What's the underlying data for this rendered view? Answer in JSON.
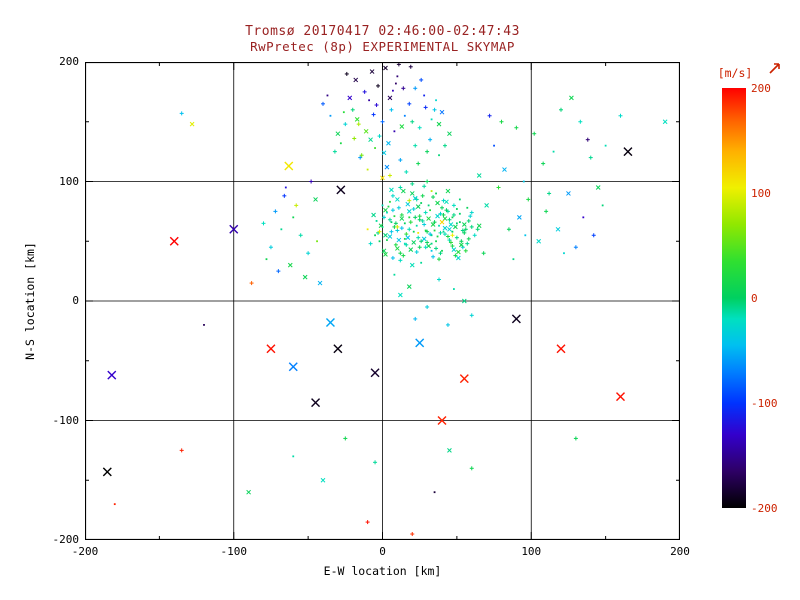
{
  "figure": {
    "title_line1": "Tromsø 20170417 02:46:00-02:47:43",
    "title_line2": "RwPretec (8p) EXPERIMENTAL SKYMAP",
    "title_color": "#992222",
    "background": "#ffffff",
    "axis_color": "#000000"
  },
  "chart_data": {
    "type": "scatter",
    "title": "Tromsø 20170417 02:46:00-02:47:43",
    "subtitle": "RwPretec (8p) EXPERIMENTAL SKYMAP",
    "xlabel": "E-W location [km]",
    "ylabel": "N-S location [km]",
    "xlim": [
      -200,
      200
    ],
    "ylim": [
      -200,
      200
    ],
    "xticks": [
      -200,
      -100,
      0,
      100,
      200
    ],
    "yticks": [
      -200,
      -100,
      0,
      100,
      200
    ],
    "grid": true,
    "grid_positions": [
      -100,
      0,
      100
    ],
    "legend_position": "right-colorbar",
    "colorbar": {
      "label": "[m/s]",
      "label_color": "#cc2200",
      "ticks": [
        200,
        100,
        0,
        -100,
        -200
      ],
      "range": [
        -200,
        200
      ],
      "stops": [
        [
          -200,
          "#000000"
        ],
        [
          -165,
          "#2e0066"
        ],
        [
          -130,
          "#3300cc"
        ],
        [
          -100,
          "#0033ff"
        ],
        [
          -70,
          "#0080ff"
        ],
        [
          -45,
          "#00c0f0"
        ],
        [
          -20,
          "#00e0c0"
        ],
        [
          0,
          "#00d060"
        ],
        [
          35,
          "#30e030"
        ],
        [
          70,
          "#90e800"
        ],
        [
          105,
          "#f0f000"
        ],
        [
          140,
          "#ffb000"
        ],
        [
          170,
          "#ff6000"
        ],
        [
          200,
          "#ff0000"
        ]
      ]
    },
    "points": [
      [
        2,
        55,
        -5
      ],
      [
        8,
        62,
        10
      ],
      [
        15,
        48,
        -20
      ],
      [
        22,
        70,
        0
      ],
      [
        28,
        52,
        -35
      ],
      [
        35,
        66,
        5
      ],
      [
        41,
        58,
        -10
      ],
      [
        12,
        40,
        15
      ],
      [
        18,
        75,
        -25
      ],
      [
        25,
        45,
        8
      ],
      [
        31,
        80,
        -5
      ],
      [
        38,
        35,
        20
      ],
      [
        45,
        60,
        -30
      ],
      [
        5,
        68,
        -12
      ],
      [
        -2,
        50,
        5
      ],
      [
        48,
        72,
        -8
      ],
      [
        20,
        30,
        -18
      ],
      [
        27,
        88,
        12
      ],
      [
        33,
        42,
        -40
      ],
      [
        40,
        78,
        3
      ],
      [
        10,
        85,
        -22
      ],
      [
        16,
        56,
        30
      ],
      [
        23,
        63,
        -15
      ],
      [
        30,
        49,
        6
      ],
      [
        37,
        71,
        -28
      ],
      [
        44,
        54,
        18
      ],
      [
        50,
        65,
        -4
      ],
      [
        7,
        36,
        -45
      ],
      [
        14,
        92,
        9
      ],
      [
        21,
        77,
        -33
      ],
      [
        29,
        59,
        22
      ],
      [
        36,
        44,
        -7
      ],
      [
        43,
        83,
        -19
      ],
      [
        49,
        38,
        14
      ],
      [
        3,
        74,
        -26
      ],
      [
        55,
        57,
        2
      ],
      [
        11,
        51,
        -38
      ],
      [
        19,
        66,
        25
      ],
      [
        26,
        32,
        -11
      ],
      [
        34,
        87,
        7
      ],
      [
        42,
        61,
        -31
      ],
      [
        47,
        46,
        16
      ],
      [
        52,
        73,
        -2
      ],
      [
        6,
        58,
        -42
      ],
      [
        13,
        69,
        11
      ],
      [
        24,
        53,
        -16
      ],
      [
        32,
        76,
        28
      ],
      [
        39,
        40,
        -6
      ],
      [
        46,
        64,
        -24
      ],
      [
        53,
        50,
        4
      ],
      [
        0,
        62,
        -14
      ],
      [
        9,
        47,
        21
      ],
      [
        17,
        81,
        -36
      ],
      [
        25,
        68,
        1
      ],
      [
        33,
        55,
        -9
      ],
      [
        41,
        72,
        13
      ],
      [
        48,
        43,
        -27
      ],
      [
        56,
        60,
        -1
      ],
      [
        4,
        79,
        17
      ],
      [
        12,
        34,
        -21
      ],
      [
        20,
        90,
        5
      ],
      [
        28,
        64,
        -34
      ],
      [
        36,
        50,
        10
      ],
      [
        44,
        75,
        -13
      ],
      [
        51,
        41,
        24
      ],
      [
        58,
        67,
        -3
      ],
      [
        -5,
        55,
        8
      ],
      [
        1,
        70,
        -29
      ],
      [
        10,
        44,
        19
      ],
      [
        18,
        60,
        -17
      ],
      [
        26,
        82,
        3
      ],
      [
        34,
        37,
        -41
      ],
      [
        42,
        69,
        15
      ],
      [
        50,
        53,
        -8
      ],
      [
        57,
        78,
        6
      ],
      [
        -8,
        48,
        -23
      ],
      [
        -1,
        63,
        12
      ],
      [
        7,
        76,
        -37
      ],
      [
        15,
        52,
        26
      ],
      [
        23,
        85,
        -12
      ],
      [
        31,
        46,
        9
      ],
      [
        39,
        73,
        -25
      ],
      [
        47,
        58,
        0
      ],
      [
        54,
        45,
        -32
      ],
      [
        2,
        39,
        18
      ],
      [
        60,
        62,
        -6
      ],
      [
        8,
        71,
        23
      ],
      [
        16,
        47,
        -15
      ],
      [
        24,
        79,
        4
      ],
      [
        32,
        56,
        -39
      ],
      [
        40,
        42,
        11
      ],
      [
        48,
        80,
        -20
      ],
      [
        55,
        64,
        7
      ],
      [
        -3,
        57,
        -10
      ],
      [
        5,
        83,
        27
      ],
      [
        13,
        61,
        -44
      ],
      [
        21,
        49,
        2
      ],
      [
        29,
        74,
        -18
      ],
      [
        37,
        54,
        20
      ],
      [
        45,
        68,
        -5
      ],
      [
        53,
        47,
        13
      ],
      [
        59,
        71,
        -30
      ],
      [
        6,
        66,
        -2
      ],
      [
        14,
        38,
        16
      ],
      [
        22,
        86,
        -28
      ],
      [
        30,
        58,
        5
      ],
      [
        38,
        63,
        -16
      ],
      [
        46,
        49,
        29
      ],
      [
        -6,
        72,
        -9
      ],
      [
        62,
        55,
        -22
      ],
      [
        3,
        51,
        14
      ],
      [
        11,
        78,
        -35
      ],
      [
        19,
        43,
        7
      ],
      [
        27,
        67,
        -13
      ],
      [
        35,
        59,
        21
      ],
      [
        43,
        76,
        -1
      ],
      [
        51,
        36,
        -26
      ],
      [
        58,
        52,
        10
      ],
      [
        0,
        80,
        -19
      ],
      [
        9,
        65,
        3
      ],
      [
        17,
        53,
        -43
      ],
      [
        25,
        71,
        17
      ],
      [
        33,
        48,
        -7
      ],
      [
        41,
        84,
        -24
      ],
      [
        49,
        62,
        8
      ],
      [
        56,
        42,
        25
      ],
      [
        -4,
        67,
        -11
      ],
      [
        64,
        60,
        -3
      ],
      [
        5,
        54,
        -33
      ],
      [
        13,
        72,
        19
      ],
      [
        21,
        58,
        6
      ],
      [
        29,
        45,
        -21
      ],
      [
        37,
        82,
        12
      ],
      [
        45,
        51,
        -15
      ],
      [
        52,
        66,
        2
      ],
      [
        60,
        74,
        -27
      ],
      [
        1,
        42,
        9
      ],
      [
        10,
        59,
        -36
      ],
      [
        18,
        70,
        24
      ],
      [
        26,
        50,
        -4
      ],
      [
        34,
        64,
        15
      ],
      [
        42,
        56,
        -18
      ],
      [
        50,
        77,
        5
      ],
      [
        57,
        48,
        -10
      ],
      [
        65,
        63,
        11
      ],
      [
        7,
        88,
        -25
      ],
      [
        15,
        65,
        1
      ],
      [
        23,
        41,
        -32
      ],
      [
        31,
        69,
        22
      ],
      [
        39,
        57,
        -14
      ],
      [
        47,
        70,
        8
      ],
      [
        54,
        59,
        -6
      ],
      [
        2,
        76,
        16
      ],
      [
        28,
        96,
        -12
      ],
      [
        36,
        90,
        4
      ],
      [
        20,
        98,
        -8
      ],
      [
        44,
        92,
        10
      ],
      [
        12,
        95,
        -15
      ],
      [
        52,
        85,
        -3
      ],
      [
        30,
        100,
        7
      ],
      [
        6,
        93,
        -20
      ],
      [
        10,
        62,
        95
      ],
      [
        24,
        57,
        110
      ],
      [
        18,
        84,
        88
      ],
      [
        40,
        66,
        120
      ],
      [
        -2,
        58,
        100
      ],
      [
        33,
        92,
        85
      ],
      [
        47,
        55,
        105
      ],
      [
        0,
        103,
        115
      ],
      [
        5,
        105,
        92
      ],
      [
        -10,
        60,
        108
      ],
      [
        -15,
        120,
        -60
      ],
      [
        -8,
        135,
        -10
      ],
      [
        0,
        150,
        -80
      ],
      [
        8,
        142,
        -140
      ],
      [
        -20,
        160,
        -5
      ],
      [
        5,
        170,
        -170
      ],
      [
        -3,
        180,
        -190
      ],
      [
        10,
        188,
        -160
      ],
      [
        -12,
        175,
        -120
      ],
      [
        2,
        195,
        -185
      ],
      [
        -25,
        148,
        -30
      ],
      [
        15,
        155,
        -70
      ],
      [
        22,
        130,
        -15
      ],
      [
        -30,
        140,
        8
      ],
      [
        18,
        165,
        -95
      ],
      [
        -5,
        128,
        40
      ],
      [
        12,
        118,
        -55
      ],
      [
        -18,
        185,
        -175
      ],
      [
        6,
        160,
        -45
      ],
      [
        -10,
        110,
        90
      ],
      [
        25,
        145,
        -20
      ],
      [
        -22,
        170,
        -130
      ],
      [
        30,
        125,
        5
      ],
      [
        -35,
        155,
        -60
      ],
      [
        14,
        178,
        -150
      ],
      [
        -7,
        192,
        -180
      ],
      [
        20,
        150,
        -8
      ],
      [
        -28,
        132,
        18
      ],
      [
        35,
        160,
        -40
      ],
      [
        3,
        112,
        -65
      ],
      [
        -14,
        122,
        60
      ],
      [
        28,
        172,
        -110
      ],
      [
        -2,
        138,
        -25
      ],
      [
        38,
        148,
        12
      ],
      [
        -40,
        165,
        -85
      ],
      [
        9,
        182,
        -165
      ],
      [
        16,
        108,
        -18
      ],
      [
        -17,
        152,
        35
      ],
      [
        32,
        135,
        -50
      ],
      [
        -9,
        168,
        -145
      ],
      [
        24,
        115,
        10
      ],
      [
        40,
        158,
        -75
      ],
      [
        -32,
        125,
        -12
      ],
      [
        7,
        176,
        -135
      ],
      [
        -24,
        190,
        -190
      ],
      [
        13,
        146,
        22
      ],
      [
        -6,
        156,
        -100
      ],
      [
        36,
        168,
        -28
      ],
      [
        19,
        196,
        -178
      ],
      [
        -11,
        142,
        50
      ],
      [
        42,
        130,
        -8
      ],
      [
        -37,
        172,
        -155
      ],
      [
        26,
        185,
        -90
      ],
      [
        1,
        124,
        -38
      ],
      [
        -19,
        136,
        70
      ],
      [
        33,
        152,
        -18
      ],
      [
        -4,
        164,
        -125
      ],
      [
        45,
        140,
        5
      ],
      [
        11,
        198,
        -182
      ],
      [
        -26,
        158,
        28
      ],
      [
        22,
        178,
        -60
      ],
      [
        4,
        132,
        -48
      ],
      [
        -16,
        148,
        80
      ],
      [
        38,
        122,
        -5
      ],
      [
        29,
        162,
        -105
      ],
      [
        70,
        80,
        -15
      ],
      [
        85,
        60,
        5
      ],
      [
        95,
        100,
        -40
      ],
      [
        110,
        75,
        10
      ],
      [
        125,
        90,
        -60
      ],
      [
        140,
        120,
        -10
      ],
      [
        75,
        130,
        -90
      ],
      [
        90,
        145,
        15
      ],
      [
        105,
        50,
        -25
      ],
      [
        120,
        160,
        -5
      ],
      [
        135,
        70,
        -130
      ],
      [
        68,
        40,
        8
      ],
      [
        82,
        110,
        -50
      ],
      [
        98,
        85,
        20
      ],
      [
        115,
        125,
        -15
      ],
      [
        130,
        45,
        -70
      ],
      [
        145,
        95,
        5
      ],
      [
        72,
        155,
        -110
      ],
      [
        88,
        35,
        -8
      ],
      [
        102,
        140,
        12
      ],
      [
        118,
        60,
        -35
      ],
      [
        133,
        150,
        -20
      ],
      [
        148,
        80,
        -5
      ],
      [
        78,
        95,
        30
      ],
      [
        92,
        70,
        -55
      ],
      [
        108,
        115,
        8
      ],
      [
        122,
        40,
        -28
      ],
      [
        138,
        135,
        -160
      ],
      [
        65,
        105,
        -12
      ],
      [
        80,
        150,
        18
      ],
      [
        96,
        55,
        -42
      ],
      [
        112,
        90,
        -8
      ],
      [
        127,
        170,
        10
      ],
      [
        142,
        55,
        -95
      ],
      [
        150,
        130,
        -18
      ],
      [
        160,
        155,
        -25
      ],
      [
        190,
        150,
        -20
      ],
      [
        -50,
        40,
        -30
      ],
      [
        -60,
        70,
        10
      ],
      [
        -70,
        25,
        -80
      ],
      [
        -45,
        85,
        5
      ],
      [
        -55,
        55,
        -15
      ],
      [
        -65,
        95,
        -120
      ],
      [
        -75,
        45,
        -35
      ],
      [
        -42,
        15,
        -50
      ],
      [
        -58,
        80,
        90
      ],
      [
        -68,
        60,
        -10
      ],
      [
        -48,
        100,
        -140
      ],
      [
        -62,
        30,
        15
      ],
      [
        -72,
        75,
        -60
      ],
      [
        -44,
        50,
        60
      ],
      [
        -80,
        65,
        -20
      ],
      [
        -52,
        20,
        8
      ],
      [
        -66,
        88,
        -100
      ],
      [
        -78,
        35,
        12
      ],
      [
        -135,
        157,
        -45
      ],
      [
        -128,
        148,
        100
      ],
      [
        -88,
        15,
        170
      ],
      [
        -120,
        -20,
        -170
      ],
      [
        -135,
        -125,
        190
      ],
      [
        -40,
        -150,
        -20
      ],
      [
        -10,
        -185,
        195
      ],
      [
        35,
        -160,
        -180
      ],
      [
        60,
        -140,
        10
      ],
      [
        -90,
        -160,
        5
      ],
      [
        20,
        -195,
        185
      ],
      [
        -60,
        -130,
        -15
      ],
      [
        130,
        -115,
        8
      ],
      [
        45,
        -125,
        -8
      ],
      [
        -25,
        -115,
        12
      ],
      [
        -180,
        -170,
        190
      ],
      [
        -5,
        -135,
        -12
      ],
      [
        12,
        5,
        -20
      ],
      [
        30,
        -5,
        -35
      ],
      [
        48,
        10,
        -15
      ],
      [
        22,
        -15,
        -48
      ],
      [
        55,
        0,
        -8
      ],
      [
        38,
        18,
        -25
      ],
      [
        8,
        22,
        -12
      ],
      [
        60,
        -12,
        -30
      ],
      [
        18,
        12,
        6
      ],
      [
        44,
        -20,
        -40
      ]
    ],
    "outliers": [
      [
        -140,
        50,
        200
      ],
      [
        -182,
        -62,
        -130
      ],
      [
        -75,
        -40,
        195
      ],
      [
        -30,
        -40,
        -195
      ],
      [
        -45,
        -85,
        -190
      ],
      [
        55,
        -65,
        190
      ],
      [
        160,
        -80,
        195
      ],
      [
        -185,
        -143,
        -200
      ],
      [
        -60,
        -55,
        -70
      ],
      [
        -5,
        -60,
        -185
      ],
      [
        40,
        -100,
        190
      ],
      [
        90,
        -15,
        -190
      ],
      [
        120,
        -40,
        195
      ],
      [
        -63,
        113,
        110
      ],
      [
        -28,
        93,
        -190
      ],
      [
        165,
        125,
        -195
      ],
      [
        -100,
        60,
        -140
      ],
      [
        25,
        -35,
        -60
      ],
      [
        -35,
        -18,
        -55
      ]
    ]
  }
}
